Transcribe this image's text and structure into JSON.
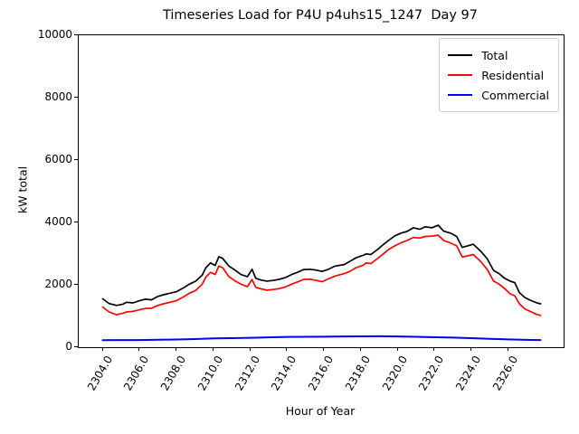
{
  "chart_data": {
    "type": "line",
    "title": "Timeseries Load for P4U p4uhs15_1247  Day 97",
    "xlabel": "Hour of Year",
    "ylabel": "kW total",
    "xlim": [
      2302.7,
      2329.0
    ],
    "ylim": [
      0,
      10000
    ],
    "grid": false,
    "legend_position": "upper right",
    "x_ticks": [
      {
        "value": 2304,
        "label": "2304.0"
      },
      {
        "value": 2306,
        "label": "2306.0"
      },
      {
        "value": 2308,
        "label": "2308.0"
      },
      {
        "value": 2310,
        "label": "2310.0"
      },
      {
        "value": 2312,
        "label": "2312.0"
      },
      {
        "value": 2314,
        "label": "2314.0"
      },
      {
        "value": 2316,
        "label": "2316.0"
      },
      {
        "value": 2318,
        "label": "2318.0"
      },
      {
        "value": 2320,
        "label": "2320.0"
      },
      {
        "value": 2322,
        "label": "2322.0"
      },
      {
        "value": 2324,
        "label": "2324.0"
      },
      {
        "value": 2326,
        "label": "2326.0"
      }
    ],
    "y_ticks": [
      {
        "value": 0,
        "label": "0"
      },
      {
        "value": 2000,
        "label": "2000"
      },
      {
        "value": 4000,
        "label": "4000"
      },
      {
        "value": 6000,
        "label": "6000"
      },
      {
        "value": 8000,
        "label": "8000"
      },
      {
        "value": 10000,
        "label": "10000"
      }
    ],
    "series": [
      {
        "name": "Total",
        "color": "#000000",
        "points": [
          [
            2304.0,
            1550
          ],
          [
            2304.35,
            1400
          ],
          [
            2304.75,
            1340
          ],
          [
            2305.1,
            1380
          ],
          [
            2305.3,
            1440
          ],
          [
            2305.65,
            1420
          ],
          [
            2306.0,
            1490
          ],
          [
            2306.3,
            1540
          ],
          [
            2306.65,
            1520
          ],
          [
            2307.0,
            1630
          ],
          [
            2307.3,
            1680
          ],
          [
            2307.65,
            1730
          ],
          [
            2308.0,
            1780
          ],
          [
            2308.35,
            1890
          ],
          [
            2308.7,
            2020
          ],
          [
            2309.05,
            2120
          ],
          [
            2309.4,
            2310
          ],
          [
            2309.6,
            2550
          ],
          [
            2309.85,
            2700
          ],
          [
            2310.1,
            2620
          ],
          [
            2310.3,
            2900
          ],
          [
            2310.5,
            2850
          ],
          [
            2310.85,
            2600
          ],
          [
            2311.2,
            2460
          ],
          [
            2311.5,
            2330
          ],
          [
            2311.85,
            2260
          ],
          [
            2312.1,
            2500
          ],
          [
            2312.3,
            2210
          ],
          [
            2312.6,
            2150
          ],
          [
            2312.9,
            2120
          ],
          [
            2313.25,
            2140
          ],
          [
            2313.6,
            2180
          ],
          [
            2313.9,
            2230
          ],
          [
            2314.25,
            2330
          ],
          [
            2314.6,
            2410
          ],
          [
            2314.9,
            2490
          ],
          [
            2315.25,
            2500
          ],
          [
            2315.6,
            2470
          ],
          [
            2315.9,
            2430
          ],
          [
            2316.25,
            2500
          ],
          [
            2316.6,
            2600
          ],
          [
            2317.1,
            2650
          ],
          [
            2317.4,
            2750
          ],
          [
            2317.75,
            2870
          ],
          [
            2318.1,
            2940
          ],
          [
            2318.3,
            2990
          ],
          [
            2318.55,
            2970
          ],
          [
            2318.9,
            3130
          ],
          [
            2319.2,
            3280
          ],
          [
            2319.5,
            3420
          ],
          [
            2319.85,
            3570
          ],
          [
            2320.2,
            3660
          ],
          [
            2320.5,
            3710
          ],
          [
            2320.85,
            3830
          ],
          [
            2321.2,
            3780
          ],
          [
            2321.5,
            3860
          ],
          [
            2321.85,
            3830
          ],
          [
            2322.2,
            3910
          ],
          [
            2322.5,
            3720
          ],
          [
            2322.9,
            3650
          ],
          [
            2323.2,
            3550
          ],
          [
            2323.5,
            3200
          ],
          [
            2323.8,
            3250
          ],
          [
            2324.1,
            3300
          ],
          [
            2324.5,
            3080
          ],
          [
            2324.85,
            2840
          ],
          [
            2325.2,
            2460
          ],
          [
            2325.5,
            2360
          ],
          [
            2325.8,
            2210
          ],
          [
            2326.1,
            2120
          ],
          [
            2326.35,
            2070
          ],
          [
            2326.6,
            1750
          ],
          [
            2326.9,
            1590
          ],
          [
            2327.25,
            1490
          ],
          [
            2327.55,
            1420
          ],
          [
            2327.75,
            1390
          ]
        ]
      },
      {
        "name": "Residential",
        "color": "#ff0000",
        "points": [
          [
            2304.0,
            1290
          ],
          [
            2304.35,
            1130
          ],
          [
            2304.75,
            1040
          ],
          [
            2305.1,
            1090
          ],
          [
            2305.3,
            1130
          ],
          [
            2305.65,
            1150
          ],
          [
            2306.0,
            1200
          ],
          [
            2306.3,
            1240
          ],
          [
            2306.65,
            1250
          ],
          [
            2307.0,
            1340
          ],
          [
            2307.3,
            1390
          ],
          [
            2307.65,
            1440
          ],
          [
            2308.0,
            1490
          ],
          [
            2308.35,
            1600
          ],
          [
            2308.7,
            1730
          ],
          [
            2309.05,
            1820
          ],
          [
            2309.4,
            2020
          ],
          [
            2309.6,
            2250
          ],
          [
            2309.85,
            2400
          ],
          [
            2310.1,
            2330
          ],
          [
            2310.3,
            2600
          ],
          [
            2310.5,
            2550
          ],
          [
            2310.85,
            2260
          ],
          [
            2311.2,
            2120
          ],
          [
            2311.5,
            2020
          ],
          [
            2311.85,
            1940
          ],
          [
            2312.1,
            2170
          ],
          [
            2312.3,
            1920
          ],
          [
            2312.6,
            1870
          ],
          [
            2312.9,
            1830
          ],
          [
            2313.25,
            1850
          ],
          [
            2313.6,
            1880
          ],
          [
            2313.9,
            1930
          ],
          [
            2314.25,
            2020
          ],
          [
            2314.6,
            2100
          ],
          [
            2314.9,
            2170
          ],
          [
            2315.25,
            2180
          ],
          [
            2315.6,
            2140
          ],
          [
            2315.9,
            2100
          ],
          [
            2316.25,
            2190
          ],
          [
            2316.6,
            2280
          ],
          [
            2317.1,
            2360
          ],
          [
            2317.4,
            2430
          ],
          [
            2317.75,
            2550
          ],
          [
            2318.1,
            2620
          ],
          [
            2318.3,
            2700
          ],
          [
            2318.55,
            2680
          ],
          [
            2318.9,
            2840
          ],
          [
            2319.2,
            2980
          ],
          [
            2319.5,
            3130
          ],
          [
            2319.85,
            3250
          ],
          [
            2320.2,
            3350
          ],
          [
            2320.5,
            3420
          ],
          [
            2320.85,
            3520
          ],
          [
            2321.2,
            3500
          ],
          [
            2321.5,
            3550
          ],
          [
            2321.85,
            3560
          ],
          [
            2322.2,
            3590
          ],
          [
            2322.5,
            3420
          ],
          [
            2322.9,
            3330
          ],
          [
            2323.2,
            3250
          ],
          [
            2323.5,
            2890
          ],
          [
            2323.8,
            2930
          ],
          [
            2324.1,
            2970
          ],
          [
            2324.5,
            2750
          ],
          [
            2324.85,
            2500
          ],
          [
            2325.2,
            2120
          ],
          [
            2325.5,
            2020
          ],
          [
            2325.8,
            1880
          ],
          [
            2326.1,
            1710
          ],
          [
            2326.35,
            1650
          ],
          [
            2326.6,
            1390
          ],
          [
            2326.9,
            1230
          ],
          [
            2327.25,
            1130
          ],
          [
            2327.55,
            1050
          ],
          [
            2327.75,
            1020
          ]
        ]
      },
      {
        "name": "Commercial",
        "color": "#0000ff",
        "points": [
          [
            2304.0,
            225
          ],
          [
            2305.0,
            228
          ],
          [
            2306.0,
            230
          ],
          [
            2307.0,
            238
          ],
          [
            2308.0,
            245
          ],
          [
            2309.0,
            260
          ],
          [
            2310.0,
            280
          ],
          [
            2311.0,
            290
          ],
          [
            2312.0,
            300
          ],
          [
            2313.0,
            315
          ],
          [
            2314.0,
            330
          ],
          [
            2315.0,
            332
          ],
          [
            2316.0,
            335
          ],
          [
            2317.0,
            345
          ],
          [
            2318.0,
            348
          ],
          [
            2319.0,
            350
          ],
          [
            2320.0,
            345
          ],
          [
            2321.0,
            332
          ],
          [
            2322.0,
            320
          ],
          [
            2323.0,
            308
          ],
          [
            2324.0,
            290
          ],
          [
            2325.0,
            268
          ],
          [
            2326.0,
            250
          ],
          [
            2327.0,
            235
          ],
          [
            2327.75,
            230
          ]
        ]
      }
    ]
  }
}
